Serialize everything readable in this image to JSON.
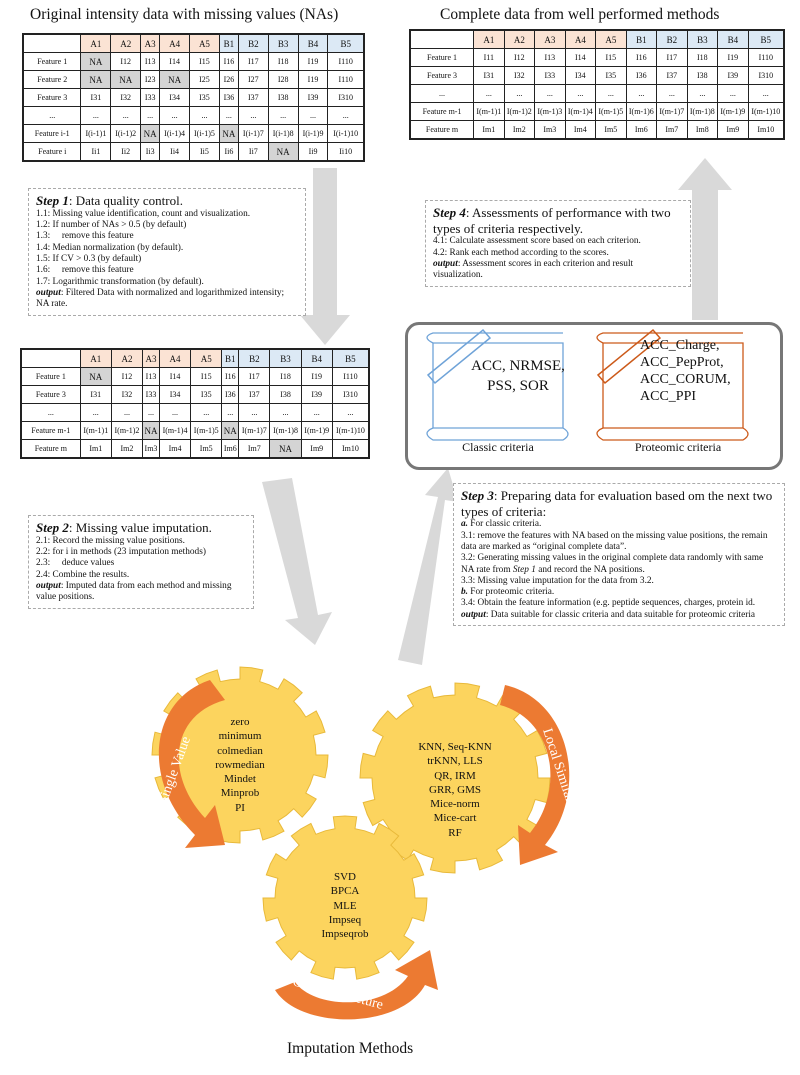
{
  "colors": {
    "groupA": "#fbe3d4",
    "groupB": "#dce9f5",
    "na_cell": "#d4d4d4",
    "gear": "#fcd45e",
    "arrow_orange": "#ec7a32",
    "arrow_gray": "#d9d9d9",
    "classic": "#6fa3d8",
    "proteomic": "#cc5a1a"
  },
  "titles": {
    "original": "Original intensity data with missing values (NAs)",
    "complete": "Complete data from well performed methods",
    "imputation": "Imputation Methods"
  },
  "columns": [
    "A1",
    "A2",
    "A3",
    "A4",
    "A5",
    "B1",
    "B2",
    "B3",
    "B4",
    "B5"
  ],
  "tables": {
    "original": {
      "rows": [
        {
          "label": "Feature 1",
          "cells": [
            "NA",
            "I12",
            "I13",
            "I14",
            "I15",
            "I16",
            "I17",
            "I18",
            "I19",
            "I110"
          ]
        },
        {
          "label": "Feature 2",
          "cells": [
            "NA",
            "NA",
            "I23",
            "NA",
            "I25",
            "I26",
            "I27",
            "I28",
            "I19",
            "I110"
          ]
        },
        {
          "label": "Feature 3",
          "cells": [
            "I31",
            "I32",
            "I33",
            "I34",
            "I35",
            "I36",
            "I37",
            "I38",
            "I39",
            "I310"
          ]
        },
        {
          "label": "...",
          "cells": [
            "...",
            "...",
            "...",
            "...",
            "...",
            "...",
            "...",
            "...",
            "...",
            "..."
          ]
        },
        {
          "label": "Feature i-1",
          "cells": [
            "I(i-1)1",
            "I(i-1)2",
            "NA",
            "I(i-1)4",
            "I(i-1)5",
            "NA",
            "I(i-1)7",
            "I(i-1)8",
            "I(i-1)9",
            "I(i-1)10"
          ]
        },
        {
          "label": "Feature i",
          "cells": [
            "Ii1",
            "Ii2",
            "Ii3",
            "Ii4",
            "Ii5",
            "Ii6",
            "Ii7",
            "NA",
            "Ii9",
            "Ii10"
          ]
        }
      ]
    },
    "filtered": {
      "rows": [
        {
          "label": "Feature 1",
          "cells": [
            "NA",
            "I12",
            "I13",
            "I14",
            "I15",
            "I16",
            "I17",
            "I18",
            "I19",
            "I110"
          ]
        },
        {
          "label": "Feature 3",
          "cells": [
            "I31",
            "I32",
            "I33",
            "I34",
            "I35",
            "I36",
            "I37",
            "I38",
            "I39",
            "I310"
          ]
        },
        {
          "label": "...",
          "cells": [
            "...",
            "...",
            "...",
            "...",
            "...",
            "...",
            "...",
            "...",
            "...",
            "..."
          ]
        },
        {
          "label": "Feature m-1",
          "cells": [
            "I(m-1)1",
            "I(m-1)2",
            "NA",
            "I(m-1)4",
            "I(m-1)5",
            "NA",
            "I(m-1)7",
            "I(m-1)8",
            "I(m-1)9",
            "I(m-1)10"
          ]
        },
        {
          "label": "Feature m",
          "cells": [
            "Im1",
            "Im2",
            "Im3",
            "Im4",
            "Im5",
            "Im6",
            "Im7",
            "NA",
            "Im9",
            "Im10"
          ]
        }
      ]
    },
    "complete": {
      "rows": [
        {
          "label": "Feature 1",
          "cells": [
            "I11",
            "I12",
            "I13",
            "I14",
            "I15",
            "I16",
            "I17",
            "I18",
            "I19",
            "I110"
          ]
        },
        {
          "label": "Feature 3",
          "cells": [
            "I31",
            "I32",
            "I33",
            "I34",
            "I35",
            "I36",
            "I37",
            "I38",
            "I39",
            "I310"
          ]
        },
        {
          "label": "...",
          "cells": [
            "...",
            "...",
            "...",
            "...",
            "...",
            "...",
            "...",
            "...",
            "...",
            "..."
          ]
        },
        {
          "label": "Feature m-1",
          "cells": [
            "I(m-1)1",
            "I(m-1)2",
            "I(m-1)3",
            "I(m-1)4",
            "I(m-1)5",
            "I(m-1)6",
            "I(m-1)7",
            "I(m-1)8",
            "I(m-1)9",
            "I(m-1)10"
          ]
        },
        {
          "label": "Feature m",
          "cells": [
            "Im1",
            "Im2",
            "Im3",
            "Im4",
            "Im5",
            "Im6",
            "Im7",
            "Im8",
            "Im9",
            "Im10"
          ]
        }
      ]
    }
  },
  "step1": {
    "label": "Step 1",
    "title": ": Data quality control.",
    "lines": [
      "1.1: Missing value identification, count and visualization.",
      "1.2: If number of NAs > 0.5 (by default)",
      "1.3:     remove this feature",
      "1.4: Median normalization (by default).",
      "1.5: If CV > 0.3 (by default)",
      "1.6:     remove this feature",
      "1.7: Logarithmic transformation (by default)."
    ],
    "output_label": "output",
    "output": ": Filtered Data with normalized and logarithmized intensity; NA rate."
  },
  "step2": {
    "label": "Step 2",
    "title": ": Missing value imputation.",
    "lines": [
      "2.1: Record the missing value positions.",
      "2.2: for i in methods (23 imputation methods)",
      "2.3:     deduce values",
      "2.4: Combine the results."
    ],
    "output_label": "output",
    "output": ": Imputed data from each method and missing value positions."
  },
  "step3": {
    "label": "Step 3",
    "title": ": Preparing data for evaluation based om the next two types of criteria:",
    "a_label": "a.",
    "a_text": " For classic criteria.",
    "l31": "3.1: remove the features with NA based on the missing value positions, the remain data are marked as “original complete data”.",
    "l32a": "3.2: Generating missing values in the original complete data randomly with same NA rate from ",
    "l32ref": "Step 1",
    "l32b": " and record the NA positions.",
    "l33": "3.3: Missing value imputation for the data from 3.2.",
    "b_label": "b.",
    "b_text": " For proteomic criteria.",
    "l34": "3.4: Obtain the feature information (e.g. peptide sequences, charges, protein id.",
    "output_label": "output",
    "output": ": Data suitable for classic criteria and data suitable for proteomic criteria"
  },
  "step4": {
    "label": "Step 4",
    "title": ": Assessments of performance with two types of criteria respectively.",
    "lines": [
      "4.1: Calculate assessment score based on each criterion.",
      "4.2: Rank each method according to the scores."
    ],
    "output_label": "output",
    "output": ": Assessment scores in each criterion and result visualization."
  },
  "criteria": {
    "classic": {
      "items": [
        "ACC, NRMSE,",
        "PSS, SOR"
      ],
      "caption": "Classic criteria"
    },
    "proteomic": {
      "items": [
        "ACC_Charge,",
        "ACC_PepProt,",
        "ACC_CORUM,",
        "ACC_PPI"
      ],
      "caption": "Proteomic criteria"
    }
  },
  "gears": {
    "single": {
      "label": "Single Value",
      "methods": [
        "zero",
        "minimum",
        "colmedian",
        "rowmedian",
        "Mindet",
        "Minprob",
        "PI"
      ]
    },
    "local": {
      "label": "Local Similarity",
      "methods": [
        "KNN, Seq-KNN",
        "trKNN, LLS",
        "QR, IRM",
        "GRR, GMS",
        "Mice-norm",
        "Mice-cart",
        "RF"
      ]
    },
    "global": {
      "label": "Global Structure",
      "methods": [
        "SVD",
        "BPCA",
        "MLE",
        "Impseq",
        "Impseqrob"
      ]
    }
  }
}
